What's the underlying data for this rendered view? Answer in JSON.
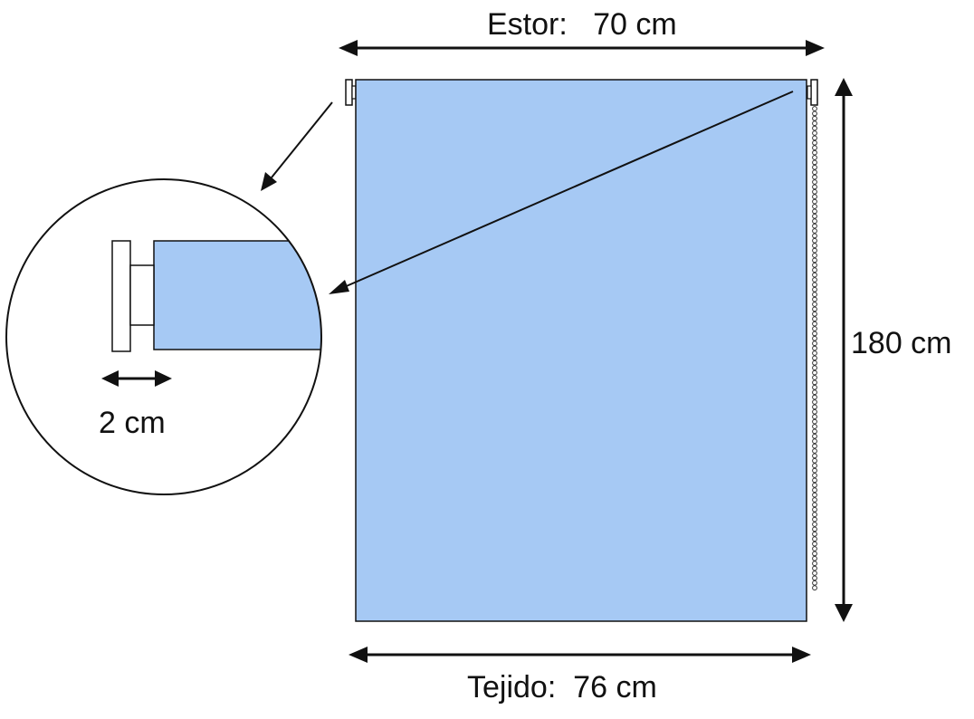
{
  "dimensions": {
    "estor_width": "Estor:   70 cm",
    "height": "180 cm",
    "fabric_width": "Tejido:  76 cm",
    "bracket_offset": "2 cm"
  },
  "colors": {
    "fabric": "#a6c9f4",
    "line": "#111111",
    "background": "#ffffff"
  }
}
